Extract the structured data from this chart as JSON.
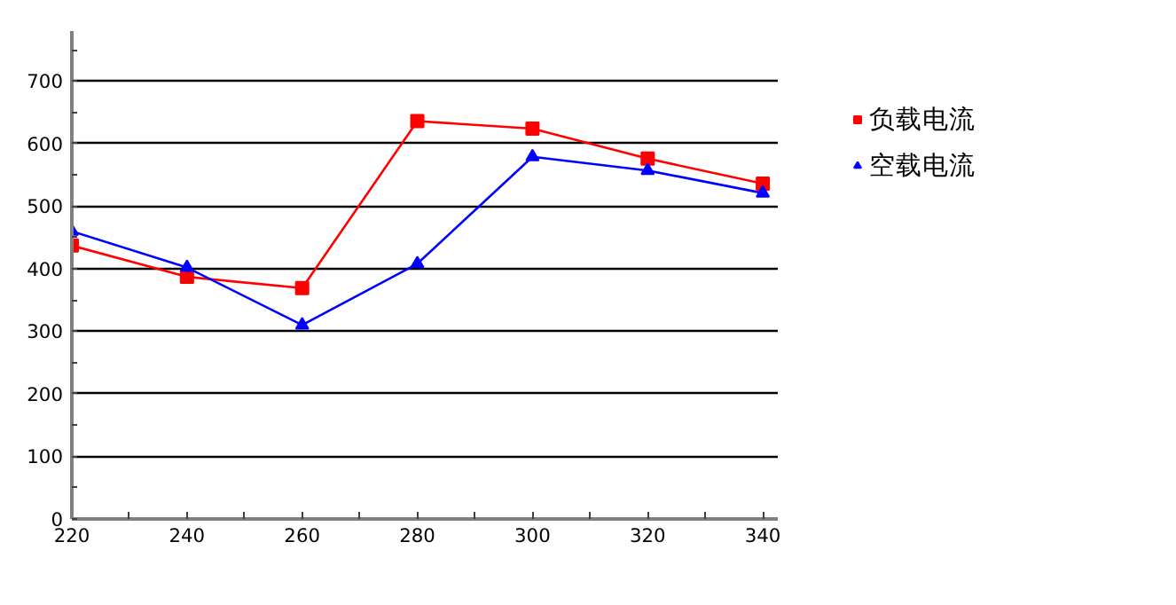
{
  "chart_data": {
    "type": "line",
    "x": [
      220,
      240,
      260,
      280,
      300,
      320,
      340
    ],
    "series": [
      {
        "name": "负载电流",
        "color": "#ff0000",
        "marker": "square",
        "values": [
          437,
          387,
          369,
          636,
          624,
          576,
          536
        ]
      },
      {
        "name": "空载电流",
        "color": "#0000ff",
        "marker": "triangle",
        "values": [
          460,
          402,
          310,
          408,
          579,
          557,
          521
        ]
      }
    ],
    "xlim": [
      220,
      342.6
    ],
    "xticks": [
      220,
      {
        "value": 230,
        "label": null
      },
      240,
      {
        "value": 250,
        "label": null
      },
      260,
      {
        "value": 270,
        "label": null
      },
      280,
      {
        "value": 290,
        "label": null
      },
      300,
      {
        "value": 310,
        "label": null
      },
      320,
      {
        "value": 330,
        "label": null
      },
      340
    ],
    "ylim": [
      0,
      780
    ],
    "yticks": [
      0,
      {
        "value": 50,
        "label": null
      },
      100,
      {
        "value": 150,
        "label": null
      },
      200,
      {
        "value": 250,
        "label": null
      },
      300,
      {
        "value": 350,
        "label": null
      },
      400,
      {
        "value": 450,
        "label": null
      },
      500,
      {
        "value": 550,
        "label": null
      },
      600,
      {
        "value": 650,
        "label": null
      },
      700,
      {
        "value": 750,
        "label": null
      }
    ],
    "grid": "y",
    "legend": "right"
  }
}
